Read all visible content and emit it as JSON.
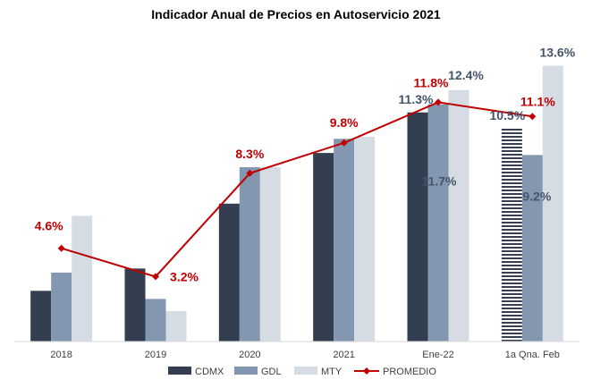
{
  "chart_data": {
    "type": "bar",
    "title": "Indicador Anual de Precios en Autoservicio 2021",
    "categories": [
      "2018",
      "2019",
      "2020",
      "2021",
      "Ene-22",
      "1a Qna. Feb"
    ],
    "series": [
      {
        "name": "CDMX",
        "type": "bar",
        "color": "#333f50",
        "values": [
          2.5,
          3.6,
          6.8,
          9.3,
          11.3,
          10.5
        ]
      },
      {
        "name": "GDL",
        "type": "bar",
        "color": "#8497b0",
        "values": [
          3.4,
          2.1,
          8.6,
          10.0,
          11.7,
          9.2
        ]
      },
      {
        "name": "MTY",
        "type": "bar",
        "color": "#d6dce4",
        "values": [
          6.2,
          1.5,
          8.6,
          10.1,
          12.4,
          13.6
        ]
      },
      {
        "name": "PROMEDIO",
        "type": "line",
        "color": "#c00000",
        "values": [
          4.6,
          3.2,
          8.3,
          9.8,
          11.8,
          11.1
        ]
      }
    ],
    "labels": {
      "avg": [
        "4.6%",
        "3.2%",
        "8.3%",
        "9.8%",
        "11.8%",
        "11.1%"
      ],
      "bars": [
        {
          "cat": 4,
          "series": 0,
          "text": "11.3%"
        },
        {
          "cat": 4,
          "series": 1,
          "text": "11.7%"
        },
        {
          "cat": 4,
          "series": 2,
          "text": "12.4%"
        },
        {
          "cat": 5,
          "series": 0,
          "text": "10.5%"
        },
        {
          "cat": 5,
          "series": 1,
          "text": "9.2%"
        },
        {
          "cat": 5,
          "series": 2,
          "text": "13.6%"
        }
      ]
    },
    "ylim": [
      0,
      14.2
    ],
    "grid": false,
    "legend": "bottom",
    "highlight": {
      "cat": 5,
      "series": 0,
      "pattern": "horizontal-stripes"
    }
  }
}
